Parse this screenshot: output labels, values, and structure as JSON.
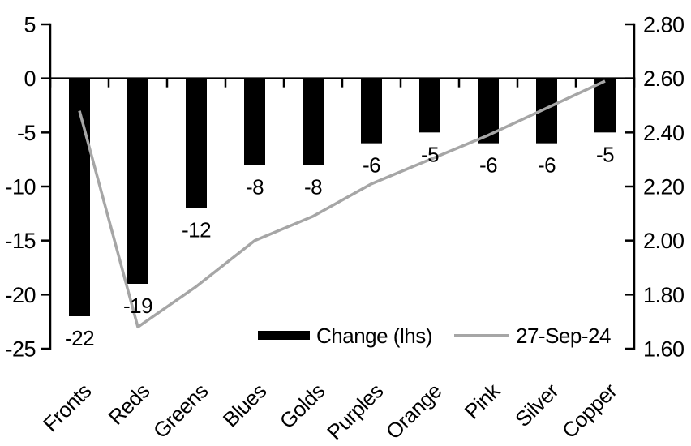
{
  "chart_data": {
    "type": "bar",
    "subtype": "combo-bar-line",
    "title": "",
    "xlabel": "",
    "ylabel": "",
    "grid": false,
    "categories": [
      "Fronts",
      "Reds",
      "Greens",
      "Blues",
      "Golds",
      "Purples",
      "Orange",
      "Pink",
      "Silver",
      "Copper"
    ],
    "series": [
      {
        "name": "Change (lhs)",
        "type": "bar",
        "axis": "left",
        "color": "#000000",
        "values": [
          -22,
          -19,
          -12,
          -8,
          -8,
          -6,
          -5,
          -6,
          -6,
          -5
        ],
        "data_labels": [
          "-22",
          "-19",
          "-12",
          "-8",
          "-8",
          "-6",
          "-5",
          "-6",
          "-6",
          "-5"
        ]
      },
      {
        "name": "27-Sep-24",
        "type": "line",
        "axis": "right",
        "color": "#a6a6a6",
        "values": [
          2.48,
          1.68,
          1.83,
          2.0,
          2.09,
          2.21,
          2.3,
          2.39,
          2.49,
          2.59
        ]
      }
    ],
    "left_axis": {
      "min": -25,
      "max": 5,
      "step": 5,
      "tick_values": [
        5,
        0,
        -5,
        -10,
        -15,
        -20,
        -25
      ],
      "tick_labels": [
        "5",
        "0",
        "-5",
        "-10",
        "-15",
        "-20",
        "-25"
      ]
    },
    "right_axis": {
      "min": 1.6,
      "max": 2.8,
      "step": 0.2,
      "tick_values": [
        2.8,
        2.6,
        2.4,
        2.2,
        2.0,
        1.8,
        1.6
      ],
      "tick_labels": [
        "2.80",
        "2.60",
        "2.40",
        "2.20",
        "2.00",
        "1.80",
        "1.60"
      ]
    },
    "legend": {
      "position": "bottom-inside",
      "items": [
        {
          "label": "Change (lhs)",
          "swatch": "bar",
          "color": "#000000"
        },
        {
          "label": "27-Sep-24",
          "swatch": "line",
          "color": "#a6a6a6"
        }
      ]
    },
    "colors": {
      "bar": "#000000",
      "line": "#a6a6a6",
      "axis": "#000000",
      "background": "#ffffff",
      "text": "#000000"
    }
  }
}
